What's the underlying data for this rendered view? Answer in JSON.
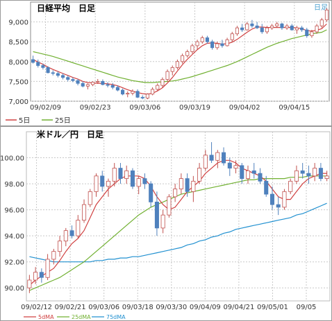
{
  "chart_data": [
    {
      "type": "candlestick",
      "title": "日経平均　日足",
      "corner_label": "日足",
      "ylim": [
        7000,
        9500
      ],
      "yticks": [
        "7,000",
        "7,500",
        "8,000",
        "8,500",
        "9,000"
      ],
      "xticks": [
        "09/02/09",
        "09/02/23",
        "09/03/06",
        "09/03/19",
        "09/04/02",
        "09/04/15"
      ],
      "legend": [
        "5日",
        "25日"
      ],
      "colors": {
        "up": "#ffffff",
        "up_border": "#c0504d",
        "down": "#4f81bd",
        "ma5": "#d04040",
        "ma25": "#70b030"
      },
      "candles": [
        [
          8050,
          8150,
          7950,
          7980
        ],
        [
          7980,
          8050,
          7850,
          7900
        ],
        [
          7900,
          7950,
          7800,
          7850
        ],
        [
          7850,
          7880,
          7700,
          7720
        ],
        [
          7720,
          7780,
          7650,
          7700
        ],
        [
          7700,
          7750,
          7600,
          7650
        ],
        [
          7650,
          7700,
          7550,
          7600
        ],
        [
          7600,
          7650,
          7500,
          7550
        ],
        [
          7550,
          7600,
          7480,
          7520
        ],
        [
          7520,
          7560,
          7400,
          7450
        ],
        [
          7450,
          7500,
          7350,
          7380
        ],
        [
          7380,
          7450,
          7300,
          7420
        ],
        [
          7420,
          7500,
          7380,
          7480
        ],
        [
          7480,
          7560,
          7440,
          7500
        ],
        [
          7500,
          7550,
          7400,
          7420
        ],
        [
          7420,
          7480,
          7350,
          7400
        ],
        [
          7400,
          7460,
          7300,
          7350
        ],
        [
          7350,
          7400,
          7250,
          7280
        ],
        [
          7280,
          7320,
          7150,
          7180
        ],
        [
          7180,
          7250,
          7100,
          7200
        ],
        [
          7200,
          7300,
          7150,
          7250
        ],
        [
          7250,
          7300,
          7080,
          7100
        ],
        [
          7100,
          7150,
          7050,
          7080
        ],
        [
          7080,
          7200,
          7050,
          7180
        ],
        [
          7180,
          7350,
          7150,
          7300
        ],
        [
          7300,
          7450,
          7250,
          7400
        ],
        [
          7400,
          7600,
          7350,
          7550
        ],
        [
          7550,
          7800,
          7500,
          7750
        ],
        [
          7750,
          7900,
          7650,
          7850
        ],
        [
          7850,
          8050,
          7800,
          8000
        ],
        [
          8000,
          8200,
          7950,
          8150
        ],
        [
          8150,
          8300,
          8100,
          8250
        ],
        [
          8250,
          8450,
          8200,
          8400
        ],
        [
          8400,
          8550,
          8300,
          8500
        ],
        [
          8500,
          8650,
          8450,
          8600
        ],
        [
          8600,
          8650,
          8450,
          8500
        ],
        [
          8500,
          8550,
          8300,
          8350
        ],
        [
          8350,
          8500,
          8300,
          8450
        ],
        [
          8450,
          8550,
          8350,
          8400
        ],
        [
          8400,
          8600,
          8380,
          8550
        ],
        [
          8550,
          8750,
          8500,
          8700
        ],
        [
          8700,
          8900,
          8650,
          8850
        ],
        [
          8850,
          8950,
          8750,
          8800
        ],
        [
          8800,
          9000,
          8780,
          8950
        ],
        [
          8950,
          9050,
          8850,
          8900
        ],
        [
          8900,
          9000,
          8820,
          8850
        ],
        [
          8850,
          8950,
          8700,
          8750
        ],
        [
          8750,
          8900,
          8700,
          8850
        ],
        [
          8850,
          8950,
          8800,
          8900
        ],
        [
          8900,
          9000,
          8850,
          8950
        ],
        [
          8950,
          8980,
          8800,
          8850
        ],
        [
          8850,
          8950,
          8800,
          8900
        ],
        [
          8900,
          8950,
          8780,
          8800
        ],
        [
          8800,
          8900,
          8700,
          8850
        ],
        [
          8850,
          8900,
          8750,
          8800
        ],
        [
          8800,
          8850,
          8600,
          8650
        ],
        [
          8650,
          8800,
          8600,
          8750
        ],
        [
          8750,
          8950,
          8700,
          8900
        ],
        [
          8900,
          9100,
          8850,
          9050
        ],
        [
          9050,
          9350,
          9000,
          9300
        ]
      ],
      "ma5": [
        8050,
        7990,
        7930,
        7860,
        7800,
        7750,
        7700,
        7650,
        7600,
        7560,
        7500,
        7470,
        7460,
        7450,
        7450,
        7440,
        7420,
        7390,
        7340,
        7290,
        7250,
        7220,
        7190,
        7180,
        7200,
        7260,
        7340,
        7460,
        7600,
        7760,
        7920,
        8060,
        8180,
        8300,
        8400,
        8460,
        8470,
        8460,
        8440,
        8450,
        8490,
        8560,
        8650,
        8740,
        8820,
        8870,
        8870,
        8860,
        8860,
        8860,
        8860,
        8860,
        8860,
        8850,
        8830,
        8780,
        8770,
        8790,
        8830,
        8950
      ],
      "ma25": [
        8250,
        8220,
        8190,
        8160,
        8130,
        8090,
        8050,
        8010,
        7970,
        7930,
        7890,
        7850,
        7810,
        7770,
        7730,
        7690,
        7650,
        7610,
        7580,
        7550,
        7520,
        7500,
        7480,
        7470,
        7470,
        7480,
        7490,
        7500,
        7510,
        7530,
        7560,
        7590,
        7620,
        7660,
        7700,
        7740,
        7780,
        7820,
        7860,
        7900,
        7950,
        8000,
        8060,
        8120,
        8180,
        8240,
        8300,
        8360,
        8410,
        8460,
        8500,
        8540,
        8580,
        8610,
        8640,
        8670,
        8700,
        8720,
        8740,
        8800
      ]
    },
    {
      "type": "candlestick",
      "title": "米ドル／円　日足",
      "ylim": [
        89,
        102
      ],
      "yticks": [
        "90.00",
        "92.00",
        "94.00",
        "96.00",
        "98.00",
        "100.00"
      ],
      "xticks": [
        "09/02/12",
        "09/02/21",
        "09/03/06",
        "09/03/18",
        "09/03/30",
        "09/04/09",
        "09/04/21",
        "09/05/01",
        "09/05"
      ],
      "legend": [
        "5dMA",
        "25dMA",
        "75dMA"
      ],
      "colors": {
        "up": "#ffffff",
        "up_border": "#c0504d",
        "down": "#4f81bd",
        "ma5": "#d04040",
        "ma25": "#70b030",
        "ma75": "#2090d0"
      },
      "candles": [
        [
          90.0,
          91.0,
          89.6,
          90.6
        ],
        [
          90.6,
          91.6,
          90.3,
          91.2
        ],
        [
          91.2,
          91.5,
          90.4,
          90.8
        ],
        [
          90.8,
          92.6,
          90.6,
          92.2
        ],
        [
          92.2,
          93.0,
          91.8,
          92.8
        ],
        [
          92.8,
          94.0,
          92.4,
          93.6
        ],
        [
          93.6,
          94.6,
          93.2,
          94.4
        ],
        [
          94.4,
          94.8,
          93.8,
          94.0
        ],
        [
          94.0,
          95.6,
          93.8,
          95.2
        ],
        [
          95.2,
          96.8,
          95.0,
          96.4
        ],
        [
          96.4,
          97.6,
          96.2,
          97.4
        ],
        [
          97.4,
          98.8,
          97.0,
          98.6
        ],
        [
          98.6,
          99.0,
          97.4,
          97.8
        ],
        [
          97.8,
          98.4,
          97.0,
          98.2
        ],
        [
          98.2,
          99.6,
          97.8,
          99.2
        ],
        [
          99.2,
          99.6,
          98.0,
          98.4
        ],
        [
          98.4,
          99.4,
          98.0,
          99.0
        ],
        [
          99.0,
          99.2,
          97.6,
          97.8
        ],
        [
          97.8,
          98.6,
          97.2,
          98.4
        ],
        [
          98.4,
          98.8,
          97.6,
          98.0
        ],
        [
          98.0,
          98.2,
          96.2,
          96.6
        ],
        [
          96.6,
          97.4,
          94.0,
          94.6
        ],
        [
          94.6,
          96.0,
          94.2,
          95.6
        ],
        [
          95.6,
          97.2,
          95.4,
          97.0
        ],
        [
          97.0,
          98.0,
          96.6,
          97.6
        ],
        [
          97.6,
          98.8,
          97.2,
          98.4
        ],
        [
          98.4,
          98.8,
          97.0,
          97.4
        ],
        [
          97.4,
          98.6,
          96.6,
          98.2
        ],
        [
          98.2,
          99.6,
          98.0,
          99.2
        ],
        [
          99.2,
          100.6,
          99.0,
          100.2
        ],
        [
          100.2,
          101.2,
          99.6,
          99.8
        ],
        [
          99.8,
          100.6,
          99.2,
          100.4
        ],
        [
          100.4,
          100.8,
          99.4,
          99.6
        ],
        [
          99.6,
          100.0,
          98.6,
          99.2
        ],
        [
          99.2,
          99.8,
          98.8,
          99.4
        ],
        [
          99.4,
          99.6,
          98.0,
          98.4
        ],
        [
          98.4,
          99.4,
          98.0,
          99.0
        ],
        [
          99.0,
          99.6,
          98.4,
          98.8
        ],
        [
          98.8,
          99.2,
          98.0,
          98.2
        ],
        [
          98.2,
          98.6,
          97.0,
          97.2
        ],
        [
          97.2,
          97.8,
          96.0,
          96.4
        ],
        [
          96.4,
          97.0,
          95.6,
          96.2
        ],
        [
          96.2,
          97.6,
          96.0,
          97.4
        ],
        [
          97.4,
          98.4,
          97.2,
          98.2
        ],
        [
          98.2,
          99.4,
          98.0,
          99.0
        ],
        [
          99.0,
          99.6,
          98.4,
          98.8
        ],
        [
          98.8,
          99.4,
          98.0,
          98.6
        ],
        [
          98.6,
          99.6,
          98.2,
          99.2
        ],
        [
          99.2,
          99.6,
          98.2,
          98.4
        ],
        [
          98.4,
          99.0,
          98.2,
          98.6
        ]
      ],
      "ma5": [
        90.2,
        90.6,
        90.9,
        91.2,
        91.5,
        92.1,
        92.8,
        93.4,
        93.8,
        94.4,
        95.4,
        96.4,
        97.0,
        97.6,
        98.0,
        98.4,
        98.6,
        98.6,
        98.6,
        98.4,
        97.8,
        97.0,
        96.4,
        96.0,
        96.2,
        96.8,
        97.4,
        97.8,
        98.2,
        98.8,
        99.2,
        99.6,
        99.8,
        99.8,
        99.6,
        99.2,
        99.0,
        98.8,
        98.6,
        98.2,
        97.6,
        97.0,
        96.8,
        96.8,
        97.4,
        98.0,
        98.4,
        98.6,
        98.8,
        98.8
      ],
      "ma25": [
        89.8,
        90.0,
        90.2,
        90.4,
        90.6,
        90.8,
        91.1,
        91.4,
        91.7,
        92.0,
        92.4,
        92.8,
        93.2,
        93.6,
        94.0,
        94.4,
        94.8,
        95.2,
        95.6,
        95.9,
        96.2,
        96.4,
        96.6,
        96.8,
        97.0,
        97.2,
        97.3,
        97.4,
        97.5,
        97.6,
        97.7,
        97.8,
        97.9,
        98.0,
        98.1,
        98.2,
        98.3,
        98.3,
        98.4,
        98.4,
        98.4,
        98.4,
        98.4,
        98.5,
        98.5,
        98.5,
        98.6,
        98.6,
        98.6,
        98.6
      ],
      "ma75": [
        92.4,
        92.3,
        92.2,
        92.1,
        92.0,
        92.0,
        92.0,
        92.0,
        92.0,
        92.0,
        92.0,
        92.1,
        92.1,
        92.2,
        92.2,
        92.3,
        92.3,
        92.4,
        92.4,
        92.5,
        92.6,
        92.7,
        92.8,
        92.9,
        93.0,
        93.1,
        93.3,
        93.4,
        93.6,
        93.7,
        93.9,
        94.0,
        94.2,
        94.3,
        94.5,
        94.6,
        94.7,
        94.8,
        94.9,
        95.0,
        95.1,
        95.2,
        95.3,
        95.4,
        95.6,
        95.7,
        95.9,
        96.1,
        96.3,
        96.5
      ]
    }
  ]
}
